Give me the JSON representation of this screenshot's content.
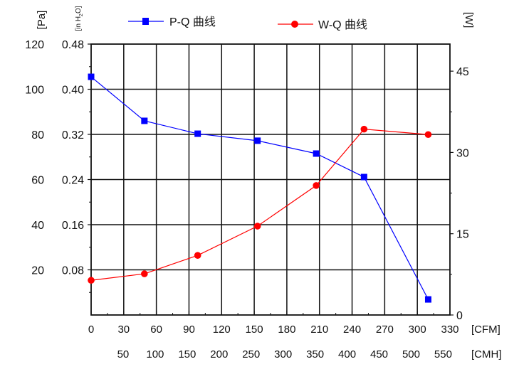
{
  "chart_data": {
    "type": "line",
    "grid": true,
    "legend_position": "top",
    "x": {
      "label": "[CFM]",
      "range": [
        0,
        330
      ],
      "ticks": [
        0,
        30,
        60,
        90,
        120,
        150,
        180,
        210,
        240,
        270,
        300,
        330
      ]
    },
    "x_secondary": {
      "label": "[CMH]",
      "ticks": [
        50,
        100,
        150,
        200,
        250,
        300,
        350,
        400,
        450,
        500,
        550
      ]
    },
    "y_left": {
      "label": "[Pa]",
      "range": [
        0,
        120
      ],
      "ticks": [
        20,
        40,
        60,
        80,
        100,
        120
      ]
    },
    "y_left_secondary": {
      "label": "[in H2O]",
      "label_main": "[in H",
      "label_sub": "2",
      "label_end": "O]",
      "ticks": [
        "0.08",
        "0.16",
        "0.24",
        "0.32",
        "0.40",
        "0.48"
      ]
    },
    "y_right": {
      "label": "[W]",
      "range": [
        0,
        50
      ],
      "ticks": [
        0,
        15,
        30,
        45
      ]
    },
    "series": [
      {
        "name": "P-Q 曲线",
        "axis": "left",
        "color": "#0000ff",
        "marker": "square",
        "x": [
          0,
          49,
          98,
          153,
          207,
          251,
          310
        ],
        "y": [
          105.5,
          86,
          80.3,
          77.2,
          71.5,
          61.1,
          6.9
        ]
      },
      {
        "name": "W-Q 曲线",
        "axis": "right",
        "color": "#ff0000",
        "marker": "circle",
        "x": [
          0,
          49,
          98,
          153,
          207,
          251,
          310
        ],
        "y": [
          6.4,
          7.6,
          11.0,
          16.4,
          23.9,
          34.3,
          33.3
        ]
      }
    ]
  }
}
